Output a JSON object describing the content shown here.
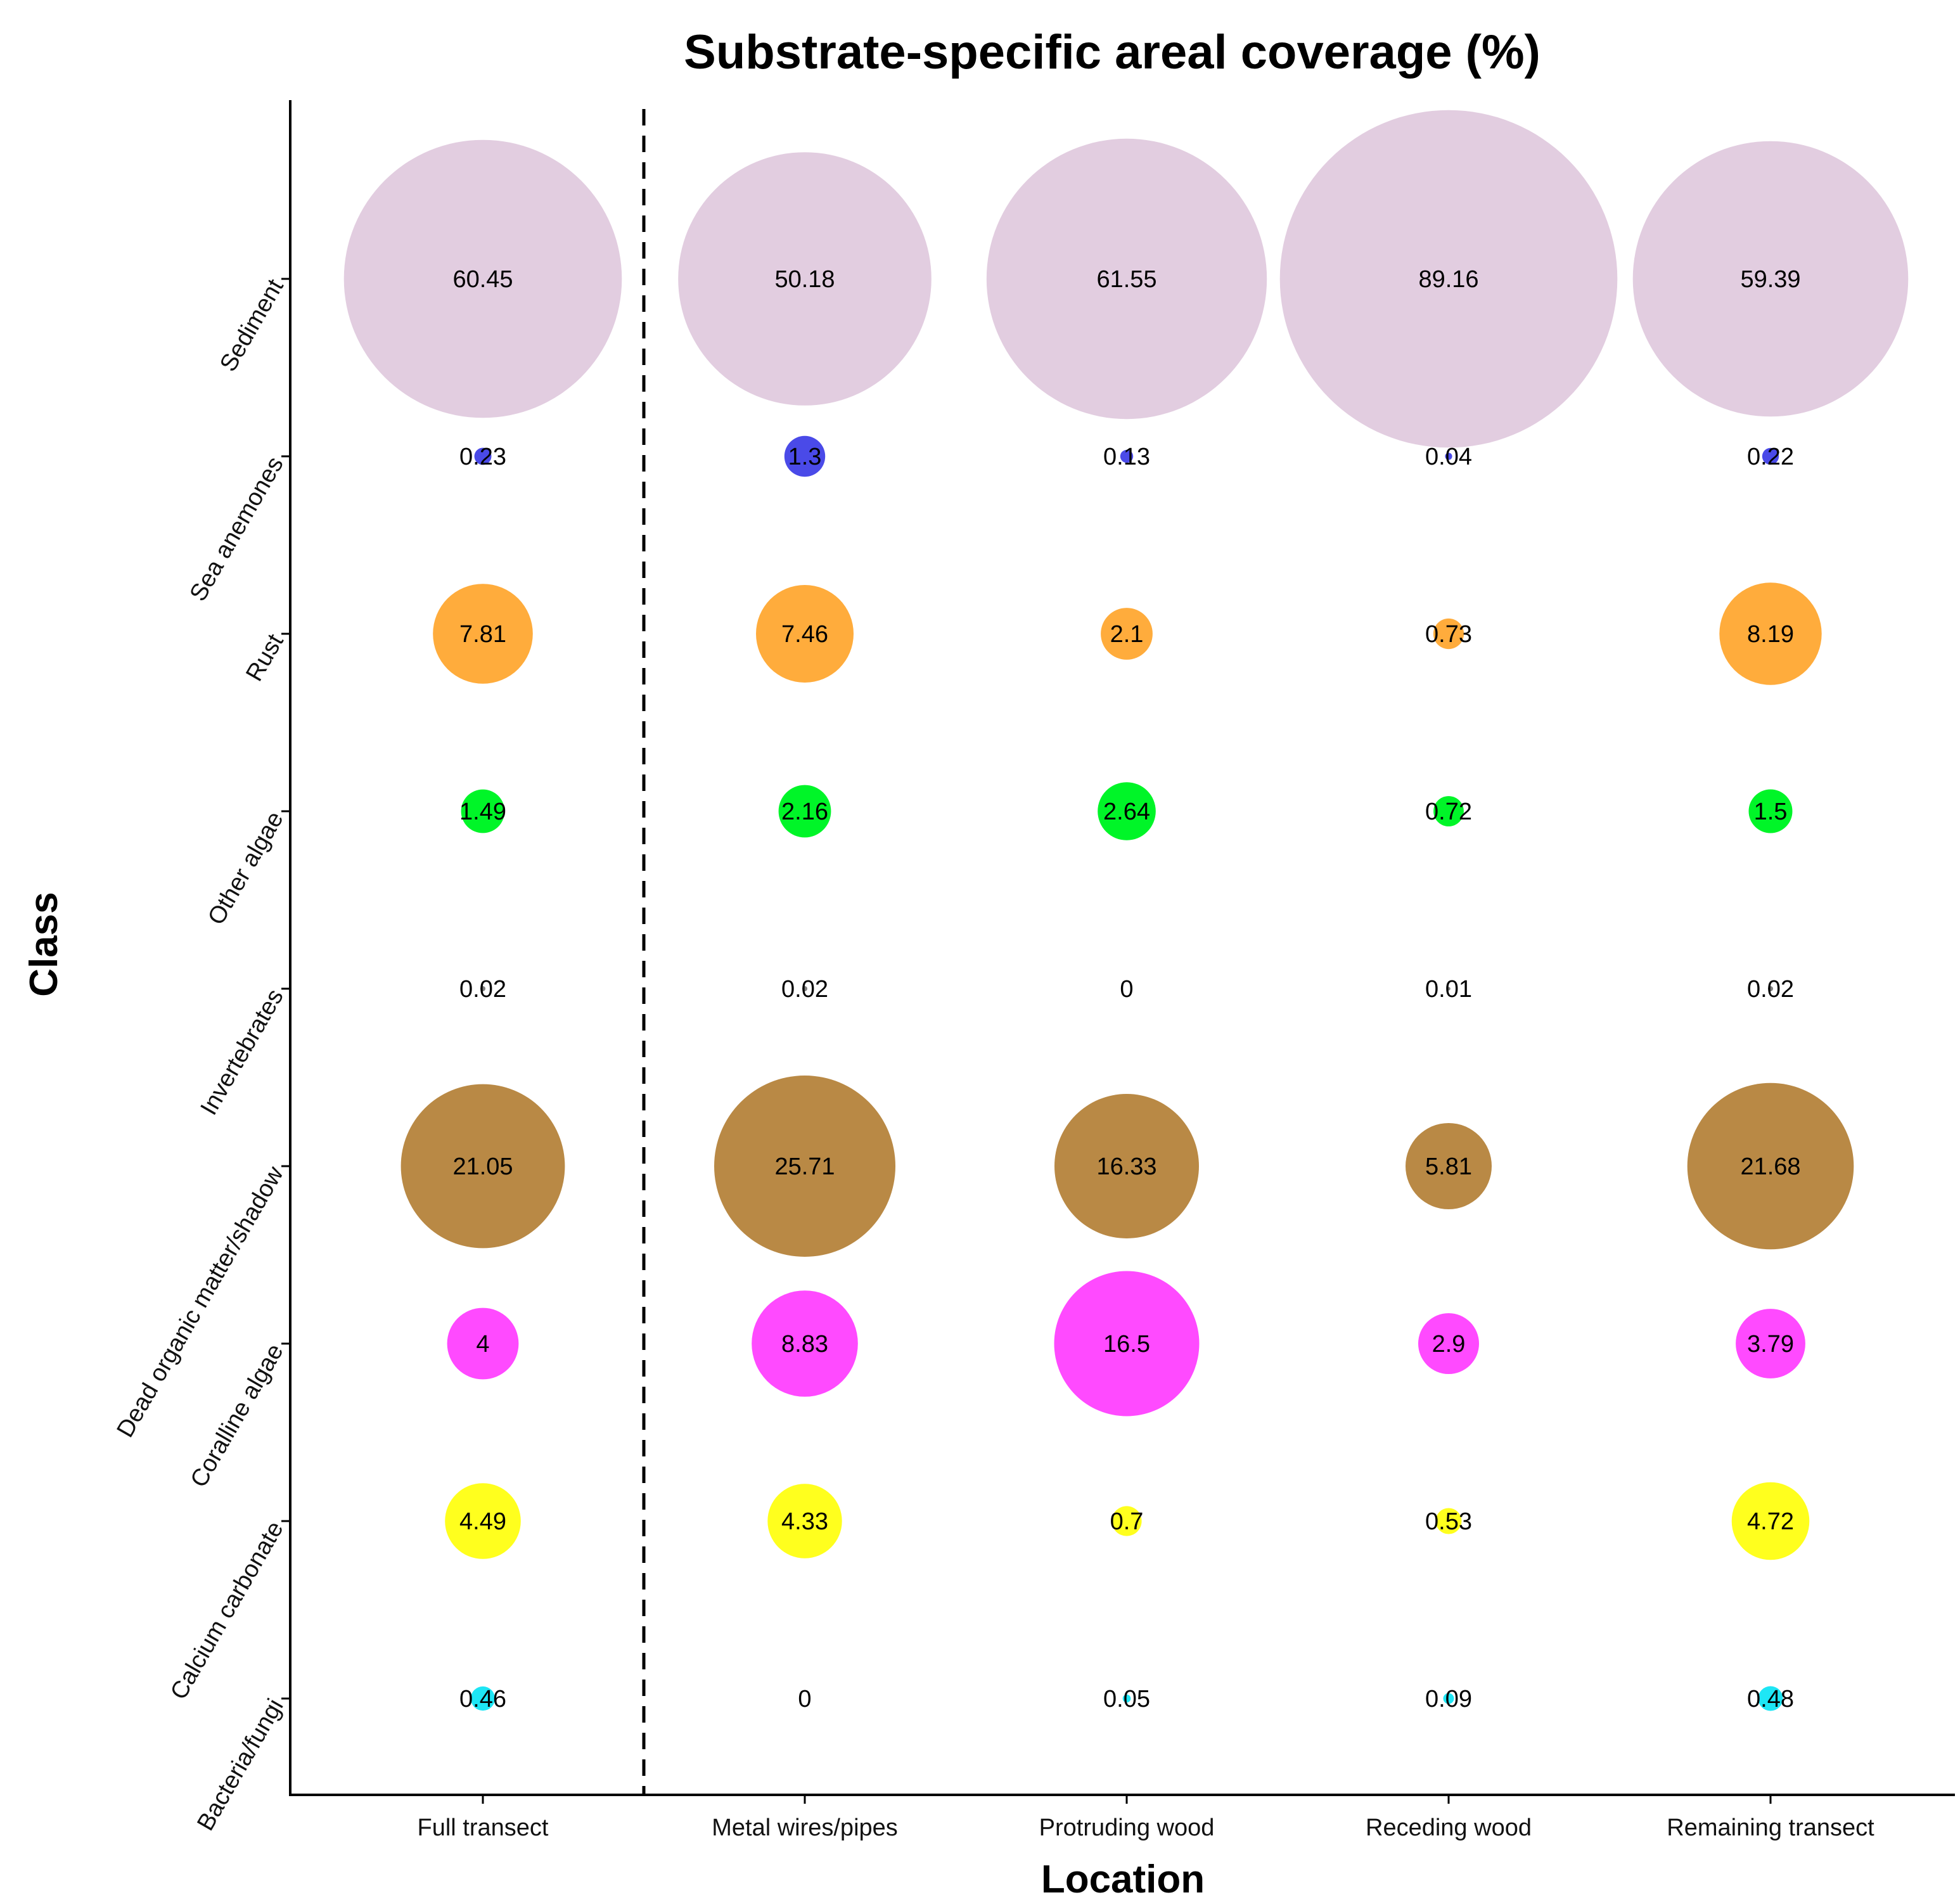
{
  "chart_data": {
    "type": "bubble",
    "title": "Substrate-specific areal coverage (%)",
    "xlabel": "Location",
    "ylabel": "Class",
    "x_categories": [
      "Full transect",
      "Metal wires/pipes",
      "Protruding wood",
      "Receding wood",
      "Remaining transect"
    ],
    "y_categories": [
      "Sediment",
      "Sea anemones",
      "Rust",
      "Other algae",
      "Invertebrates",
      "Dead organic matter/shadow",
      "Coralline algae",
      "Calcium carbonate",
      "Bacteria/fungi"
    ],
    "separator_after_x_index": 0,
    "series": [
      {
        "name": "Sediment",
        "color": "#e2cde0",
        "values": [
          60.45,
          50.18,
          61.55,
          89.16,
          59.39
        ],
        "labels": [
          "60.45",
          "50.18",
          "61.55",
          "89.16",
          "59.39"
        ]
      },
      {
        "name": "Sea anemones",
        "color": "#4a4ae8",
        "values": [
          0.23,
          1.3,
          0.13,
          0.04,
          0.22
        ],
        "labels": [
          "0.23",
          "1.3",
          "0.13",
          "0.04",
          "0.22"
        ]
      },
      {
        "name": "Rust",
        "color": "#ffac3c",
        "values": [
          7.81,
          7.46,
          2.1,
          0.73,
          8.19
        ],
        "labels": [
          "7.81",
          "7.46",
          "2.1",
          "0.73",
          "8.19"
        ]
      },
      {
        "name": "Other algae",
        "color": "#00f528",
        "values": [
          1.49,
          2.16,
          2.64,
          0.72,
          1.5
        ],
        "labels": [
          "1.49",
          "2.16",
          "2.64",
          "0.72",
          "1.5"
        ]
      },
      {
        "name": "Invertebrates",
        "color": "#7d7d7d",
        "values": [
          0.02,
          0.02,
          0,
          0.01,
          0.02
        ],
        "labels": [
          "0.02",
          "0.02",
          "0",
          "0.01",
          "0.02"
        ]
      },
      {
        "name": "Dead organic matter/shadow",
        "color": "#b98945",
        "values": [
          21.05,
          25.71,
          16.33,
          5.81,
          21.68
        ],
        "labels": [
          "21.05",
          "25.71",
          "16.33",
          "5.81",
          "21.68"
        ]
      },
      {
        "name": "Coralline algae",
        "color": "#ff4aff",
        "values": [
          4,
          8.83,
          16.5,
          2.9,
          3.79
        ],
        "labels": [
          "4",
          "8.83",
          "16.5",
          "2.9",
          "3.79"
        ]
      },
      {
        "name": "Calcium carbonate",
        "color": "#ffff1e",
        "values": [
          4.49,
          4.33,
          0.7,
          0.53,
          4.72
        ],
        "labels": [
          "4.49",
          "4.33",
          "0.7",
          "0.53",
          "4.72"
        ]
      },
      {
        "name": "Bacteria/fungi",
        "color": "#1ee6f5",
        "values": [
          0.46,
          0,
          0.05,
          0.09,
          0.48
        ],
        "labels": [
          "0.46",
          "0",
          "0.05",
          "0.09",
          "0.48"
        ]
      }
    ],
    "bubble_size": "area proportional to value",
    "grid": false,
    "legend": "none"
  }
}
